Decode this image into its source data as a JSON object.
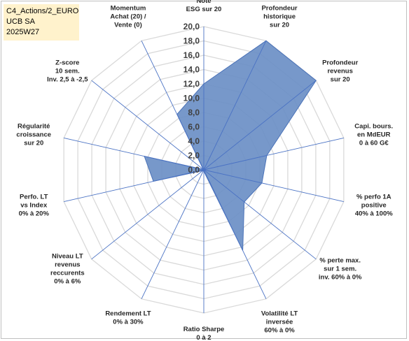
{
  "header": {
    "line1": "C4_Actions/2_EURO",
    "line2": "UCB SA",
    "line3": "2025W27"
  },
  "chart_data": {
    "type": "radar",
    "rmin": 0,
    "rmax": 20,
    "tick_step": 2,
    "tick_labels": [
      "0,0",
      "2,0",
      "4,0",
      "6,0",
      "8,0",
      "10,0",
      "12,0",
      "14,0",
      "16,0",
      "18,0",
      "20,0"
    ],
    "axes": [
      {
        "label": [
          "Note",
          "ESG sur 20"
        ]
      },
      {
        "label": [
          "Profondeur",
          "historique",
          "sur 20"
        ]
      },
      {
        "label": [
          "Profondeur",
          "revenus",
          "sur 20"
        ]
      },
      {
        "label": [
          "Capi. bours.",
          "en MdEUR",
          "0 à 60 G€"
        ]
      },
      {
        "label": [
          "% perfo 1A",
          "positive",
          "40% à 100%"
        ]
      },
      {
        "label": [
          "% perte max.",
          "sur 1 sem.",
          "inv. 60% à 0%"
        ]
      },
      {
        "label": [
          "Volatilité LT",
          "inversée",
          "60% à 0%"
        ]
      },
      {
        "label": [
          "Ratio Sharpe",
          "0 à 2"
        ]
      },
      {
        "label": [
          "Rendement LT",
          "0% à 30%"
        ]
      },
      {
        "label": [
          "Niveau LT",
          "revenus",
          "reccurents",
          "0% à 6%"
        ]
      },
      {
        "label": [
          "Perfo. LT",
          "vs Index",
          "0% à 20%"
        ]
      },
      {
        "label": [
          "Régularité",
          "croissance",
          "sur 20"
        ]
      },
      {
        "label": [
          "Z-score",
          "10 sem.",
          "Inv. 2,5 à -2,5"
        ]
      },
      {
        "label": [
          "Momentum",
          "Achat (20) /",
          "Vente (0)"
        ]
      }
    ],
    "series": [
      {
        "values": [
          12,
          20,
          20,
          9,
          8.3,
          7.2,
          12.5,
          0.2,
          0.2,
          0.2,
          7.2,
          8.5,
          0.1,
          8.6
        ]
      }
    ],
    "colors": {
      "fill": "#6b8fc6",
      "stroke": "#4a72b8",
      "grid": "#d9d9d9",
      "spoke": "#4a72c4"
    }
  }
}
